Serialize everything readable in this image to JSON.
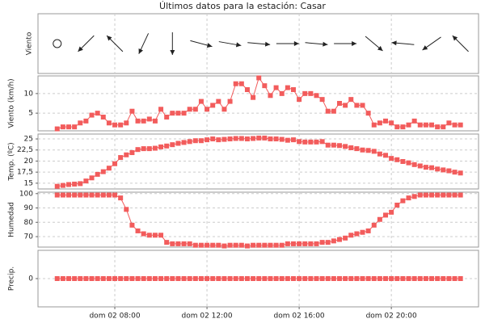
{
  "chart_data": {
    "type": "multi_panel",
    "title": "Últimos datos para la estación: Casar",
    "x": [
      330,
      345,
      360,
      375,
      390,
      405,
      420,
      435,
      450,
      465,
      480,
      495,
      510,
      525,
      540,
      555,
      570,
      585,
      600,
      615,
      630,
      645,
      660,
      675,
      690,
      705,
      720,
      735,
      750,
      765,
      780,
      795,
      810,
      825,
      840,
      855,
      870,
      885,
      900,
      915,
      930,
      945,
      960,
      975,
      990,
      1005,
      1020,
      1035,
      1050,
      1065,
      1080,
      1095,
      1110,
      1125,
      1140,
      1155,
      1170,
      1185,
      1200,
      1215,
      1230,
      1245,
      1260,
      1275,
      1290,
      1305,
      1320,
      1335,
      1350,
      1365,
      1380
    ],
    "xlim": [
      280,
      1427
    ],
    "xticks": [
      {
        "value": 480,
        "label": "dom 02 08:00"
      },
      {
        "value": 720,
        "label": "dom 02 12:00"
      },
      {
        "value": 960,
        "label": "dom 02 16:00"
      },
      {
        "value": 1200,
        "label": "dom 02 20:00"
      }
    ],
    "grid": true,
    "panels": [
      {
        "type": "wind_direction",
        "ylabel": "Viento",
        "x": [
          330,
          405,
          480,
          555,
          630,
          705,
          780,
          855,
          930,
          1005,
          1080,
          1155,
          1230,
          1305,
          1380
        ],
        "values": [
          null,
          45,
          135,
          25,
          0,
          285,
          280,
          275,
          270,
          275,
          270,
          310,
          95,
          55,
          135
        ]
      },
      {
        "type": "line",
        "ylabel": "Viento (km/h)",
        "color": "#f25c5c",
        "ylim": [
          0.5,
          14.5
        ],
        "yticks": [
          5,
          10
        ],
        "values": [
          1,
          1.5,
          1.5,
          1.5,
          2.5,
          3,
          4.5,
          5,
          4,
          2.5,
          2,
          2,
          2.5,
          5.5,
          3,
          3,
          3.5,
          3,
          6,
          4,
          5,
          5,
          5,
          6,
          6,
          8,
          6,
          7,
          8,
          6,
          8,
          12.5,
          12.5,
          11,
          9,
          14,
          12,
          9.5,
          11.5,
          10,
          11.5,
          11,
          8.5,
          10,
          10,
          9.5,
          8.5,
          5.5,
          5.5,
          7.5,
          7,
          8.5,
          7,
          7,
          5,
          2,
          2.5,
          3,
          2.5,
          1.5,
          1.5,
          2,
          3,
          2,
          2,
          2,
          1.5,
          1.5,
          2.5,
          2,
          2
        ]
      },
      {
        "type": "line",
        "ylabel": "Temp. (ºC)",
        "color": "#f25c5c",
        "ylim": [
          13.7,
          26.1
        ],
        "yticks": [
          15,
          {
            "value": 17.5,
            "label": "17,5"
          },
          20,
          {
            "value": 22.5,
            "label": "22,5"
          },
          25
        ],
        "values": [
          14.3,
          14.5,
          14.7,
          14.8,
          14.9,
          15.5,
          16.2,
          17,
          17.6,
          18.4,
          19.4,
          20.8,
          21.4,
          21.9,
          22.6,
          22.8,
          22.8,
          22.9,
          23.2,
          23.4,
          23.7,
          24,
          24.2,
          24.4,
          24.6,
          24.6,
          24.8,
          25,
          24.8,
          24.9,
          25,
          25.1,
          25.1,
          25,
          25.1,
          25.2,
          25.2,
          25,
          25,
          24.9,
          24.7,
          24.8,
          24.4,
          24.3,
          24.3,
          24.3,
          24.4,
          23.6,
          23.6,
          23.5,
          23.3,
          23,
          22.8,
          22.5,
          22.4,
          22.2,
          21.6,
          21.3,
          20.6,
          20.3,
          19.9,
          19.6,
          19.2,
          18.9,
          18.6,
          18.5,
          18.2,
          18,
          17.8,
          17.5,
          17.3
        ]
      },
      {
        "type": "line",
        "ylabel": "Humedad",
        "color": "#f25c5c",
        "ylim": [
          62.7,
          101
        ],
        "yticks": [
          70,
          80,
          90,
          100
        ],
        "values": [
          99,
          99,
          99,
          99,
          99,
          99,
          99,
          99,
          99,
          99,
          99,
          97,
          89,
          78,
          74,
          72,
          71,
          71,
          71,
          66,
          65,
          65,
          65,
          65,
          64,
          64,
          64,
          64,
          64,
          63.5,
          64,
          64,
          64,
          63.5,
          64,
          64,
          64,
          64,
          64,
          64,
          65,
          65,
          65,
          65,
          65,
          65,
          66,
          66,
          67,
          68,
          69,
          71,
          72,
          73,
          74,
          78,
          82,
          85,
          87,
          92,
          95,
          97,
          98,
          99,
          99,
          99,
          99,
          99,
          99,
          99,
          99
        ]
      },
      {
        "type": "line",
        "ylabel": "Precip.",
        "color": "#f25c5c",
        "ylim": [
          -1,
          1
        ],
        "yticks": [
          0
        ],
        "values": [
          0,
          0,
          0,
          0,
          0,
          0,
          0,
          0,
          0,
          0,
          0,
          0,
          0,
          0,
          0,
          0,
          0,
          0,
          0,
          0,
          0,
          0,
          0,
          0,
          0,
          0,
          0,
          0,
          0,
          0,
          0,
          0,
          0,
          0,
          0,
          0,
          0,
          0,
          0,
          0,
          0,
          0,
          0,
          0,
          0,
          0,
          0,
          0,
          0,
          0,
          0,
          0,
          0,
          0,
          0,
          0,
          0,
          0,
          0,
          0,
          0,
          0,
          0,
          0,
          0,
          0,
          0,
          0,
          0,
          0,
          0
        ]
      }
    ]
  }
}
